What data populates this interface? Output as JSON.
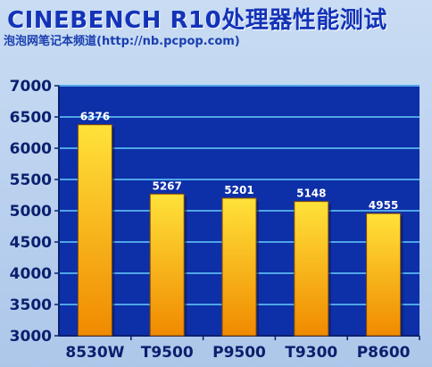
{
  "header": {
    "title": "CINEBENCH R10处理器性能测试",
    "subtitle": "泡泡网笔记本频道(http://nb.pcpop.com)"
  },
  "colors": {
    "plot_bg": "#0d2fa8",
    "grid": "#4fa6e6",
    "bar_top": "#ffe23a",
    "bar_bottom": "#f08a00",
    "axis_text": "#0b1f6e"
  },
  "chart_data": {
    "type": "bar",
    "title": "",
    "xlabel": "",
    "ylabel": "",
    "categories": [
      "8530W",
      "T9500",
      "P9500",
      "T9300",
      "P8600"
    ],
    "values": [
      6376,
      5267,
      5201,
      5148,
      4955
    ],
    "ylim": [
      3000,
      7000
    ],
    "yticks": [
      3000,
      3500,
      4000,
      4500,
      5000,
      5500,
      6000,
      6500,
      7000
    ],
    "grid": true,
    "legend": "none"
  }
}
